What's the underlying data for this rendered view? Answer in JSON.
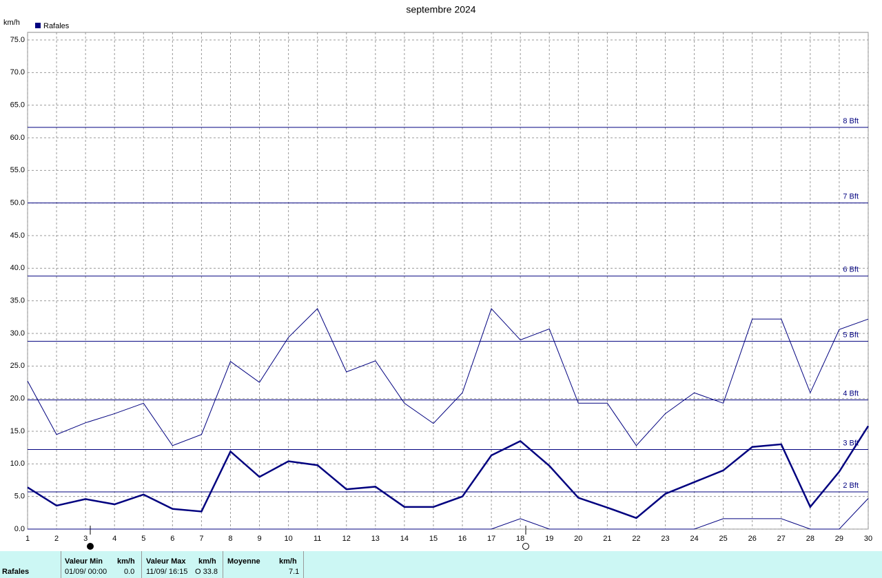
{
  "chart_data": {
    "type": "line",
    "title": "septembre 2024",
    "y_label": "km/h",
    "legend": "Rafales",
    "color": "#00007f",
    "x": [
      1,
      2,
      3,
      4,
      5,
      6,
      7,
      8,
      9,
      10,
      11,
      12,
      13,
      14,
      15,
      16,
      17,
      18,
      19,
      20,
      21,
      22,
      23,
      24,
      25,
      26,
      27,
      28,
      29,
      30
    ],
    "series": [
      {
        "name": "max",
        "width": 1,
        "values": [
          22.7,
          14.5,
          16.3,
          17.7,
          19.3,
          12.8,
          14.5,
          25.7,
          22.5,
          29.4,
          33.8,
          24.1,
          25.8,
          19.3,
          16.2,
          20.9,
          33.8,
          29.0,
          30.7,
          19.3,
          19.3,
          12.8,
          17.7,
          20.9,
          19.3,
          32.2,
          32.2,
          20.9,
          30.6,
          32.2
        ]
      },
      {
        "name": "moyenne",
        "width": 2.5,
        "values": [
          6.4,
          3.6,
          4.6,
          3.8,
          5.3,
          3.1,
          2.7,
          11.9,
          8.0,
          10.4,
          9.8,
          6.1,
          6.5,
          3.4,
          3.4,
          5.0,
          11.3,
          13.5,
          9.7,
          4.8,
          3.3,
          1.7,
          5.4,
          7.2,
          9.0,
          12.6,
          13.0,
          3.4,
          8.8,
          15.8
        ]
      },
      {
        "name": "min",
        "width": 1,
        "values": [
          0,
          0,
          0,
          0,
          0,
          0,
          0,
          0,
          0,
          0,
          0,
          0,
          0,
          0,
          0,
          0,
          0,
          1.6,
          0,
          0,
          0,
          0,
          0,
          0,
          1.6,
          1.6,
          1.6,
          0,
          0,
          4.7
        ]
      }
    ],
    "xlim": [
      1,
      30
    ],
    "xticks": [
      1,
      2,
      3,
      4,
      5,
      6,
      7,
      8,
      9,
      10,
      11,
      12,
      13,
      14,
      15,
      16,
      17,
      18,
      19,
      20,
      21,
      22,
      23,
      24,
      25,
      26,
      27,
      28,
      29,
      30
    ],
    "ylim": [
      0,
      75
    ],
    "yticks": [
      {
        "value": 0,
        "label": "0.0"
      },
      {
        "value": 5,
        "label": "5.0"
      },
      {
        "value": 10,
        "label": "10.0"
      },
      {
        "value": 15,
        "label": "15.0"
      },
      {
        "value": 20,
        "label": "20.0"
      },
      {
        "value": 25,
        "label": "25.0"
      },
      {
        "value": 30,
        "label": "30.0"
      },
      {
        "value": 35,
        "label": "35.0"
      },
      {
        "value": 40,
        "label": "40.0"
      },
      {
        "value": 45,
        "label": "45.0"
      },
      {
        "value": 50,
        "label": "50.0"
      },
      {
        "value": 55,
        "label": "55.0"
      },
      {
        "value": 60,
        "label": "60.0"
      },
      {
        "value": 65,
        "label": "65.0"
      },
      {
        "value": 70,
        "label": "70.0"
      },
      {
        "value": 75,
        "label": "75.0"
      }
    ],
    "grid": true,
    "beaufort": [
      {
        "value": 5.7,
        "label": "2 Bft"
      },
      {
        "value": 12.2,
        "label": "3 Bft"
      },
      {
        "value": 19.8,
        "label": "4 Bft"
      },
      {
        "value": 28.8,
        "label": "5 Bft"
      },
      {
        "value": 38.8,
        "label": "6 Bft"
      },
      {
        "value": 50.0,
        "label": "7 Bft"
      },
      {
        "value": 61.6,
        "label": "8 Bft"
      }
    ]
  },
  "summary": {
    "row": "Rafales",
    "min_header": "Valeur Min",
    "min_unit": "km/h",
    "min_date": "01/09/ 00:00",
    "min_value": "0.0",
    "max_header": "Valeur Max",
    "max_unit": "km/h",
    "max_date": "11/09/ 16:15",
    "max_value": "O 33.8",
    "avg_header": "Moyenne",
    "avg_unit": "km/h",
    "avg_value": "7.1"
  }
}
